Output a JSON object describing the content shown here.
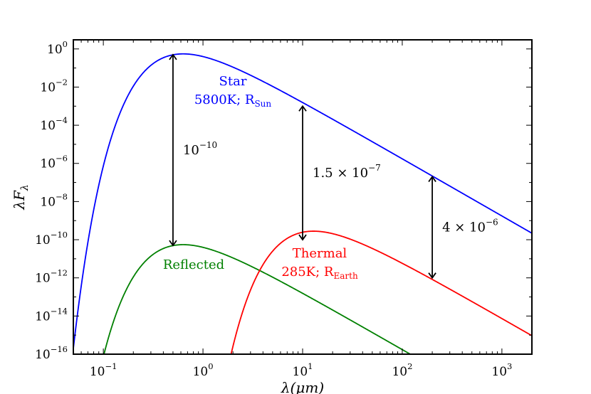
{
  "chart_data": {
    "type": "line",
    "x_scale": "log",
    "y_scale": "log",
    "xlim": [
      0.05,
      2000
    ],
    "ylim": [
      1e-16,
      3
    ],
    "grid": false,
    "xlabel": "λ(μm)",
    "ylabel": "λF_λ",
    "x_ticks": [
      {
        "value": 0.1,
        "base": "10",
        "exp": "−1"
      },
      {
        "value": 1,
        "base": "10",
        "exp": "0"
      },
      {
        "value": 10,
        "base": "10",
        "exp": "1"
      },
      {
        "value": 100,
        "base": "10",
        "exp": "2"
      },
      {
        "value": 1000,
        "base": "10",
        "exp": "3"
      }
    ],
    "y_ticks": [
      {
        "value": 1,
        "base": "10",
        "exp": "0"
      },
      {
        "value": 0.01,
        "base": "10",
        "exp": "−2"
      },
      {
        "value": 0.0001,
        "base": "10",
        "exp": "−4"
      },
      {
        "value": 1e-06,
        "base": "10",
        "exp": "−6"
      },
      {
        "value": 1e-08,
        "base": "10",
        "exp": "−8"
      },
      {
        "value": 1e-10,
        "base": "10",
        "exp": "−10"
      },
      {
        "value": 1e-12,
        "base": "10",
        "exp": "−12"
      },
      {
        "value": 1e-14,
        "base": "10",
        "exp": "−14"
      },
      {
        "value": 1e-16,
        "base": "10",
        "exp": "−16"
      }
    ],
    "series": [
      {
        "key": "star",
        "color": "#0000ff",
        "temperature_K": 5800,
        "peak_x": 0.64,
        "peak_y": 0.55
      },
      {
        "key": "reflected",
        "color": "#008000",
        "temperature_K": 5800,
        "peak_x": 0.64,
        "peak_y": 5.5e-11
      },
      {
        "key": "thermal",
        "color": "#ff0000",
        "temperature_K": 285,
        "peak_x": 13,
        "peak_y": 2.8e-10
      }
    ],
    "labels": {
      "star": {
        "line1": "Star",
        "line2_main": "5800K; R",
        "line2_sub": "Sun",
        "color": "#0000ff"
      },
      "reflected": {
        "line1": "Reflected",
        "color": "#008000"
      },
      "thermal": {
        "line1": "Thermal",
        "line2_main": "285K; R",
        "line2_sub": "Earth",
        "color": "#ff0000"
      }
    },
    "annotations": [
      {
        "x": 0.5,
        "y_from": 0.5,
        "y_to": 5e-11,
        "text": "10",
        "exp": "−10"
      },
      {
        "x": 10,
        "y_from": 0.001,
        "y_to": 1e-10,
        "text": "1.5 × 10",
        "exp": "−7"
      },
      {
        "x": 200,
        "y_from": 2e-07,
        "y_to": 1e-12,
        "text": "4 × 10",
        "exp": "−6"
      }
    ]
  }
}
